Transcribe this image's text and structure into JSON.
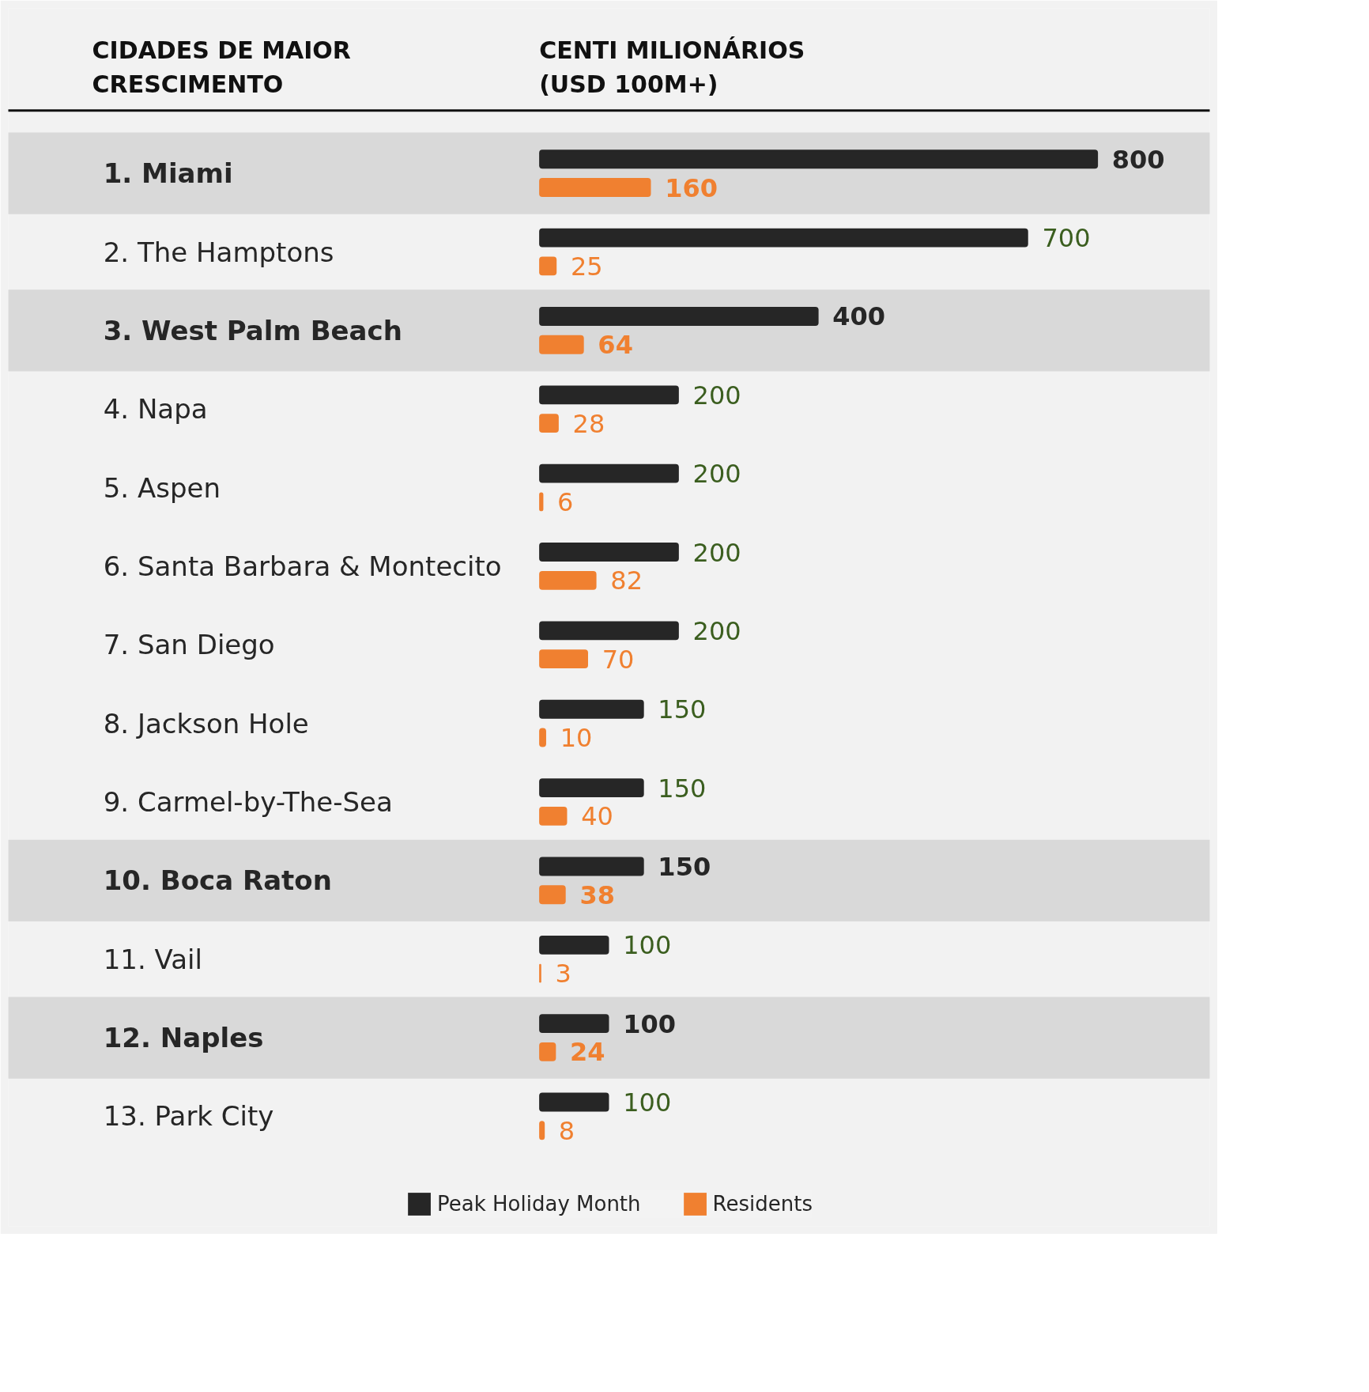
{
  "chart_data": {
    "type": "bar",
    "orientation": "horizontal",
    "ylabel": "CIDADES DE MAIOR\nCRESCIMENTO",
    "xlabel": "CENTI MILIONÁRIOS\n(USD 100M+)",
    "categories": [
      "1. Miami",
      "2. The Hamptons",
      "3. West Palm Beach",
      "4. Napa",
      "5. Aspen",
      "6. Santa Barbara & Montecito",
      "7. San Diego",
      "8. Jackson Hole",
      "9. Carmel-by-The-Sea",
      "10. Boca Raton",
      "11. Vail",
      "12. Naples",
      "13. Park City"
    ],
    "series": [
      {
        "name": "Peak Holiday Month",
        "color": "#262626",
        "values": [
          800,
          700,
          400,
          200,
          200,
          200,
          200,
          150,
          150,
          150,
          100,
          100,
          100
        ]
      },
      {
        "name": "Residents",
        "color": "#f08030",
        "values": [
          160,
          25,
          64,
          28,
          6,
          82,
          70,
          10,
          40,
          38,
          3,
          24,
          8
        ]
      }
    ],
    "bands": [
      {
        "axis": "y",
        "from": "1. Miami",
        "to": "1. Miami",
        "color": "#d9d9d9"
      },
      {
        "axis": "y",
        "from": "3. West Palm Beach",
        "to": "3. West Palm Beach",
        "color": "#d9d9d9"
      },
      {
        "axis": "y",
        "from": "10. Boca Raton",
        "to": "10. Boca Raton",
        "color": "#d9d9d9"
      },
      {
        "axis": "y",
        "from": "12. Naples",
        "to": "12. Naples",
        "color": "#d9d9d9"
      }
    ],
    "data_labels": true,
    "legend": "bottom",
    "grid": false
  }
}
